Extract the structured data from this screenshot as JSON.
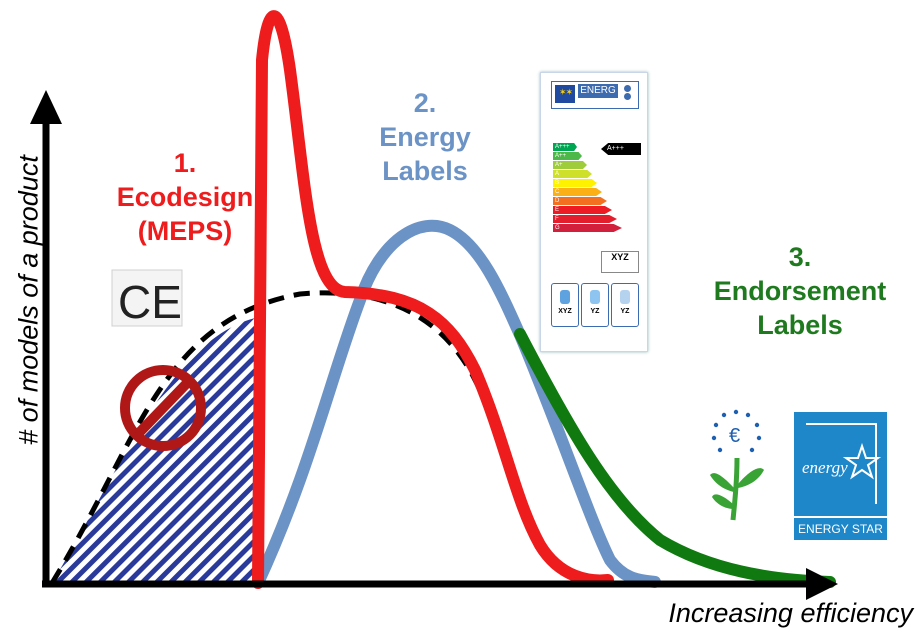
{
  "axes": {
    "y_label": "# of models of a product",
    "x_label": "Increasing efficiency"
  },
  "labels": {
    "ecodesign": {
      "number": "1.",
      "line1": "Ecodesign",
      "line2": "(MEPS)",
      "color": "#ee1c1c"
    },
    "energy_labels": {
      "number": "2.",
      "line1": "Energy",
      "line2": "Labels",
      "color": "#6c93c6"
    },
    "endorsement": {
      "number": "3.",
      "line1": "Endorsement",
      "line2": "Labels",
      "color": "#1f7a1f"
    }
  },
  "energy_label_card": {
    "title": "ENERG",
    "classes": [
      "A+++",
      "A++",
      "A+",
      "A",
      "B",
      "C",
      "D",
      "E",
      "F",
      "G"
    ],
    "class_colors": [
      "#00a651",
      "#4cb848",
      "#9ecc3b",
      "#cfe02b",
      "#fff200",
      "#fbb116",
      "#f37021",
      "#ed1c24",
      "#e31d2c",
      "#d21f3c"
    ],
    "rating_arrow": "A+++",
    "rating_box": "XYZ",
    "icon_boxes": [
      "XYZ",
      "YZ",
      "YZ"
    ]
  },
  "logos": {
    "energy_star_text": "ENERGY STAR",
    "energy_star_script": "energy",
    "ce_mark": "CE"
  },
  "colors": {
    "meps_curve": "#ee1c1c",
    "labels_curve": "#6c93c6",
    "endorsement_curve": "#107a10",
    "baseline_curve": "#000000",
    "hatch": "#2a3a9a",
    "ban_sign": "#b01818"
  }
}
